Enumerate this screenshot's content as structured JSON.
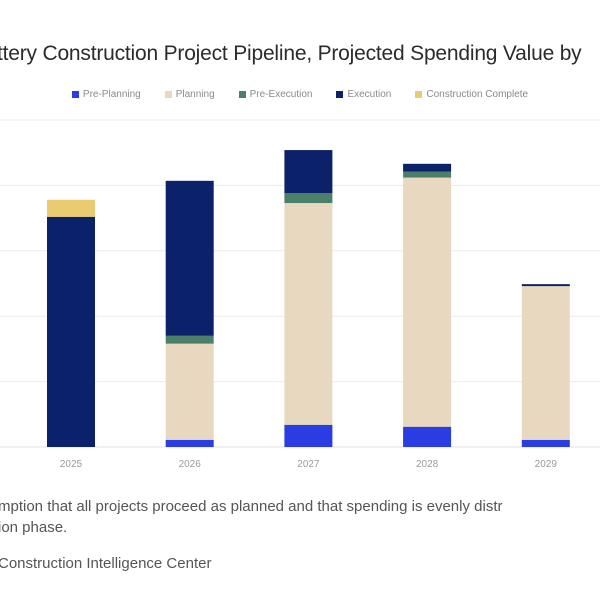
{
  "chart_data": {
    "type": "bar",
    "stacked": true,
    "title": "ttery Construction Project Pipeline,  Projected Spending Value by",
    "xlabel": "",
    "ylabel": "",
    "categories": [
      "2025",
      "2026",
      "2027",
      "2028",
      "2029"
    ],
    "ylim": [
      0,
      5
    ],
    "yticks": [
      0,
      1,
      2,
      3,
      4,
      5
    ],
    "ytick_labels_visible": false,
    "grid": true,
    "legend_position": "top-center",
    "series": [
      {
        "name": "Pre-Planning",
        "color": "#2a3de2",
        "values": [
          0,
          0.11,
          0.34,
          0.31,
          0.11
        ]
      },
      {
        "name": "Planning",
        "color": "#e8d8c0",
        "values": [
          0,
          1.47,
          3.39,
          3.81,
          2.35
        ]
      },
      {
        "name": "Pre-Execution",
        "color": "#4c7f6a",
        "values": [
          0,
          0.12,
          0.15,
          0.09,
          0
        ]
      },
      {
        "name": "Execution",
        "color": "#0b216a",
        "values": [
          3.52,
          2.37,
          0.66,
          0.12,
          0.03
        ]
      },
      {
        "name": "Construction Complete",
        "color": "#eacb72",
        "values": [
          0.26,
          0,
          0,
          0,
          0
        ]
      }
    ]
  },
  "footnote": {
    "line1": "mption that all projects proceed as planned and that spending is evenly distr",
    "line2": "ion phase."
  },
  "source": "Construction Intelligence Center"
}
